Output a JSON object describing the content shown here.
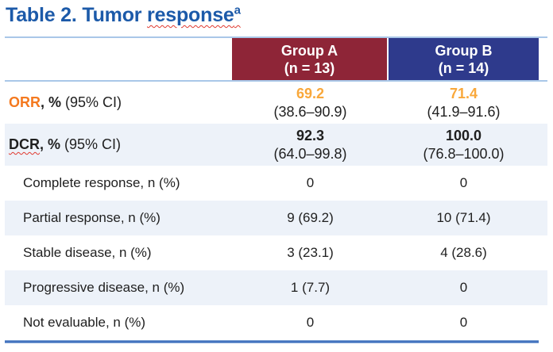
{
  "title": {
    "prefix": "Table 2. Tumor ",
    "word": "response",
    "footnote_marker": "a"
  },
  "header": {
    "columns": [
      {
        "name": "Group A",
        "n": "(n = 13)"
      },
      {
        "name": "Group B",
        "n": "(n = 14)"
      }
    ]
  },
  "rows": [
    {
      "id": "orr",
      "acronym": "ORR",
      "bold_suffix": ", %",
      "suffix": " (95% CI)",
      "group_a": {
        "value": "69.2",
        "ci": "(38.6–90.9)"
      },
      "group_b": {
        "value": "71.4",
        "ci": "(41.9–91.6)"
      }
    },
    {
      "id": "dcr",
      "acronym": "DCR",
      "bold_suffix": ", %",
      "suffix": " (95% CI)",
      "group_a": {
        "value": "92.3",
        "ci": "(64.0–99.8)"
      },
      "group_b": {
        "value": "100.0",
        "ci": "(76.8–100.0)"
      }
    },
    {
      "id": "complete-response",
      "label": "Complete response, n (%)",
      "group_a": {
        "value": "0"
      },
      "group_b": {
        "value": "0"
      }
    },
    {
      "id": "partial-response",
      "label": "Partial response, n (%)",
      "group_a": {
        "value": "9 (69.2)"
      },
      "group_b": {
        "value": "10 (71.4)"
      }
    },
    {
      "id": "stable-disease",
      "label": "Stable disease, n (%)",
      "group_a": {
        "value": "3 (23.1)"
      },
      "group_b": {
        "value": "4 (28.6)"
      }
    },
    {
      "id": "progressive-disease",
      "label": "Progressive disease, n (%)",
      "group_a": {
        "value": "1 (7.7)"
      },
      "group_b": {
        "value": "0"
      }
    },
    {
      "id": "not-evaluable",
      "label": "Not evaluable, n (%)",
      "group_a": {
        "value": "0"
      },
      "group_b": {
        "value": "0"
      }
    }
  ],
  "colors": {
    "title_blue": "#1C5AA9",
    "group_a_header_red": "#8E2537",
    "group_b_header_blue": "#2E3A8C",
    "alt_row_bg": "#EDF2F9",
    "divider_light_blue": "#A9C7E8",
    "bottom_border_blue": "#4573BF",
    "orr_label_orange": "#F4791F",
    "orr_value_orange": "#F9A83B",
    "spellcheck_red": "#E0392F"
  }
}
